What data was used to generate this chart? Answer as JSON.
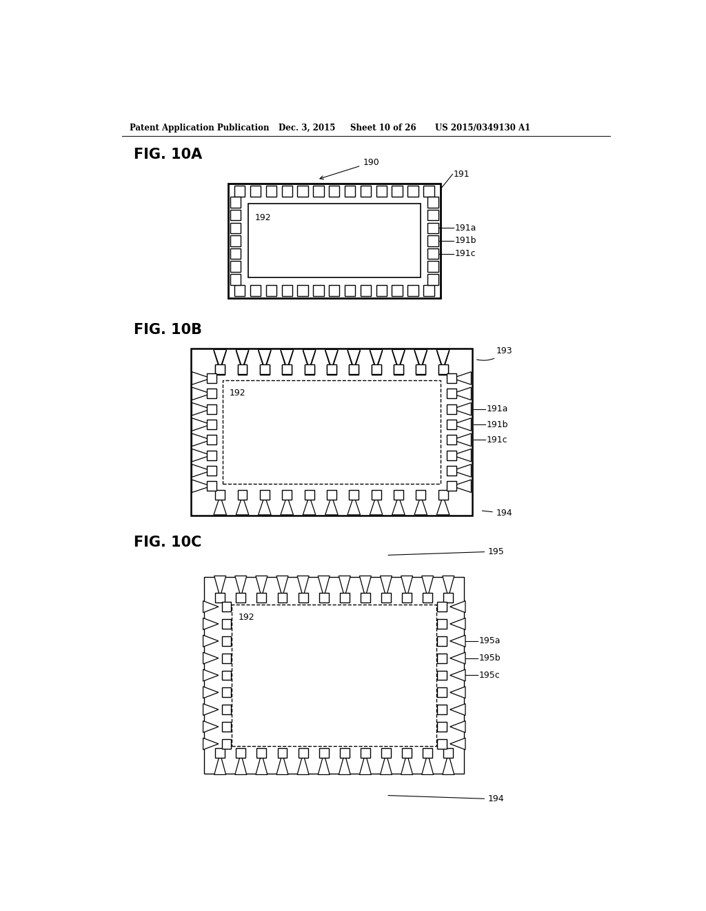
{
  "bg_color": "#ffffff",
  "header_text": "Patent Application Publication",
  "header_date": "Dec. 3, 2015",
  "header_sheet": "Sheet 10 of 26",
  "header_patent": "US 2015/0349130 A1"
}
